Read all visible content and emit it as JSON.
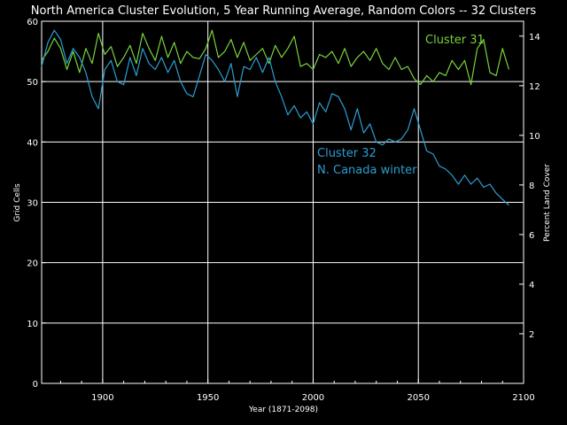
{
  "chart_data": {
    "type": "line",
    "title": "North America Cluster Evolution, 5 Year Running Average, Random Colors -- 32 Clusters",
    "xlabel": "Year (1871-2098)",
    "ylabel": "Grid Cells",
    "y2label": "Percent Land Cover",
    "xlim": [
      1871,
      2100
    ],
    "ylim": [
      0,
      60
    ],
    "y2lim": [
      0,
      14.6
    ],
    "xticks": [
      1900,
      1950,
      2000,
      2050,
      2100
    ],
    "yticks": [
      0,
      10,
      20,
      30,
      40,
      50,
      60
    ],
    "y2ticks": [
      2,
      4,
      6,
      8,
      10,
      12,
      14
    ],
    "grid": true,
    "annotations": [
      {
        "text": "Cluster 31",
        "series": "Cluster 31",
        "color": "#78d23c"
      },
      {
        "text": "Cluster 32",
        "series": "Cluster 32",
        "color": "#2b9ed2"
      },
      {
        "text": "N. Canada winter",
        "series": "Cluster 32",
        "color": "#2b9ed2"
      }
    ],
    "series": [
      {
        "name": "Cluster 31",
        "color": "#78d23c",
        "x": [
          1871,
          1874,
          1877,
          1880,
          1883,
          1886,
          1889,
          1892,
          1895,
          1898,
          1901,
          1904,
          1907,
          1910,
          1913,
          1916,
          1919,
          1922,
          1925,
          1928,
          1931,
          1934,
          1937,
          1940,
          1943,
          1946,
          1949,
          1952,
          1955,
          1958,
          1961,
          1964,
          1967,
          1970,
          1973,
          1976,
          1979,
          1982,
          1985,
          1988,
          1991,
          1994,
          1997,
          2000,
          2003,
          2006,
          2009,
          2012,
          2015,
          2018,
          2021,
          2024,
          2027,
          2030,
          2033,
          2036,
          2039,
          2042,
          2045,
          2048,
          2051,
          2054,
          2057,
          2060,
          2063,
          2066,
          2069,
          2072,
          2075,
          2078,
          2081,
          2084,
          2087,
          2090,
          2093
        ],
        "y": [
          53.5,
          55.0,
          57.2,
          55.5,
          52.0,
          55.0,
          51.5,
          55.5,
          53.0,
          58.0,
          54.5,
          55.8,
          52.5,
          54.0,
          56.0,
          53.0,
          58.0,
          55.5,
          53.5,
          57.5,
          54.0,
          56.5,
          53.0,
          55.0,
          54.0,
          53.8,
          55.5,
          58.5,
          54.0,
          55.0,
          57.0,
          54.0,
          56.5,
          53.5,
          54.5,
          55.5,
          53.0,
          56.0,
          54.0,
          55.5,
          57.5,
          52.5,
          53.0,
          52.0,
          54.5,
          54.0,
          55.0,
          53.0,
          55.5,
          52.5,
          54.0,
          55.0,
          53.5,
          55.5,
          53.0,
          52.0,
          54.0,
          52.0,
          52.5,
          50.5,
          49.5,
          51.0,
          50.0,
          51.5,
          51.0,
          53.5,
          52.0,
          53.5,
          49.5,
          55.5,
          57.0,
          51.5,
          51.0,
          55.5,
          52.0
        ]
      },
      {
        "name": "Cluster 32",
        "color": "#2b9ed2",
        "x": [
          1871,
          1874,
          1877,
          1880,
          1883,
          1886,
          1889,
          1892,
          1895,
          1898,
          1901,
          1904,
          1907,
          1910,
          1913,
          1916,
          1919,
          1922,
          1925,
          1928,
          1931,
          1934,
          1937,
          1940,
          1943,
          1946,
          1949,
          1952,
          1955,
          1958,
          1961,
          1964,
          1967,
          1970,
          1973,
          1976,
          1979,
          1982,
          1985,
          1988,
          1991,
          1994,
          1997,
          2000,
          2003,
          2006,
          2009,
          2012,
          2015,
          2018,
          2021,
          2024,
          2027,
          2030,
          2033,
          2036,
          2039,
          2042,
          2045,
          2048,
          2051,
          2054,
          2057,
          2060,
          2063,
          2066,
          2069,
          2072,
          2075,
          2078,
          2081,
          2084,
          2087,
          2090,
          2093
        ],
        "y": [
          52.5,
          56.5,
          58.5,
          57.0,
          53.0,
          55.5,
          54.0,
          51.5,
          47.5,
          45.5,
          52.0,
          53.5,
          50.0,
          49.5,
          54.0,
          51.0,
          55.5,
          53.0,
          52.0,
          54.0,
          51.5,
          53.5,
          50.0,
          48.0,
          47.5,
          51.0,
          54.5,
          53.5,
          52.0,
          50.0,
          53.0,
          47.5,
          52.5,
          52.0,
          54.0,
          51.5,
          54.0,
          50.0,
          47.5,
          44.5,
          46.0,
          44.0,
          45.0,
          43.0,
          46.5,
          45.0,
          48.0,
          47.5,
          45.5,
          42.0,
          45.5,
          41.5,
          43.0,
          40.0,
          39.5,
          40.5,
          40.0,
          40.5,
          42.0,
          45.5,
          42.0,
          38.5,
          38.0,
          36.0,
          35.5,
          34.5,
          33.0,
          34.5,
          33.0,
          34.0,
          32.5,
          33.0,
          31.5,
          30.5,
          29.5
        ]
      }
    ]
  }
}
